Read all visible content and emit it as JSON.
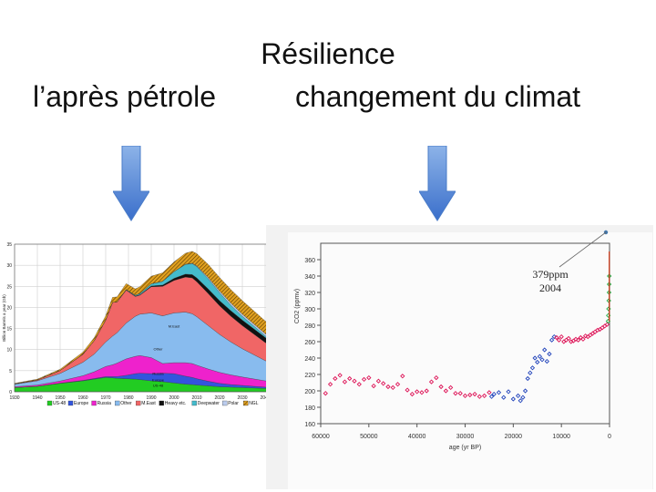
{
  "slide": {
    "title": "Résilience",
    "left_heading": "l’après pétrole",
    "right_heading": "changement du climat",
    "colors": {
      "arrow_top": "#8db3e8",
      "arrow_bottom": "#3a6fcb"
    }
  },
  "chart_data": [
    {
      "type": "area",
      "ylabel": "Billion Barrels a year (Gb)",
      "xlim": [
        1930,
        2050
      ],
      "ylim": [
        0,
        35
      ],
      "x_ticks": [
        "1930",
        "1940",
        "1950",
        "1960",
        "1970",
        "1980",
        "1990",
        "2000",
        "2010",
        "2020",
        "2030",
        "2040",
        "2050"
      ],
      "y_ticks": [
        "0",
        "5",
        "10",
        "15",
        "20",
        "25",
        "30",
        "35"
      ],
      "grid": true,
      "legend_position": "bottom",
      "x": [
        1930,
        1940,
        1950,
        1960,
        1965,
        1970,
        1973,
        1975,
        1979,
        1983,
        1985,
        1990,
        1995,
        2000,
        2005,
        2008,
        2010,
        2015,
        2020,
        2025,
        2030,
        2040,
        2050
      ],
      "series": [
        {
          "name": "US-48",
          "color": "#22cc22",
          "values": [
            1.0,
            1.3,
            2.0,
            2.6,
            3.0,
            3.4,
            3.3,
            3.2,
            3.1,
            3.0,
            2.9,
            2.6,
            2.4,
            2.1,
            1.8,
            1.7,
            1.6,
            1.4,
            1.2,
            1.1,
            1.0,
            0.8,
            0.6
          ]
        },
        {
          "name": "Europe",
          "color": "#3355dd",
          "values": [
            0.0,
            0.0,
            0.05,
            0.1,
            0.15,
            0.2,
            0.3,
            0.4,
            0.8,
            1.3,
            1.5,
            1.7,
            2.0,
            2.2,
            1.9,
            1.7,
            1.5,
            1.1,
            0.8,
            0.6,
            0.5,
            0.3,
            0.2
          ]
        },
        {
          "name": "Russia",
          "color": "#ee22cc",
          "values": [
            0.2,
            0.3,
            0.5,
            1.1,
            1.6,
            2.4,
            2.8,
            3.2,
            3.9,
            4.1,
            4.2,
            3.8,
            2.3,
            2.6,
            3.2,
            3.3,
            3.2,
            2.9,
            2.6,
            2.3,
            2.0,
            1.5,
            1.1
          ]
        },
        {
          "name": "Other",
          "color": "#88bbee",
          "values": [
            0.6,
            1.0,
            1.8,
            3.2,
            4.2,
            5.8,
            6.8,
            7.2,
            8.5,
            9.5,
            9.8,
            10.6,
            11.3,
            11.8,
            12.0,
            11.8,
            11.5,
            10.3,
            9.0,
            7.8,
            6.7,
            4.8,
            3.3
          ]
        },
        {
          "name": "M.East",
          "color": "#f06666",
          "values": [
            0.1,
            0.2,
            0.7,
            1.9,
            3.2,
            5.2,
            8.0,
            7.3,
            7.8,
            4.7,
            4.5,
            6.2,
            7.0,
            7.7,
            8.3,
            8.5,
            8.3,
            7.6,
            6.8,
            6.1,
            5.5,
            4.3,
            3.3
          ]
        },
        {
          "name": "Heavy etc.",
          "color": "#111111",
          "values": [
            0,
            0,
            0,
            0,
            0,
            0,
            0,
            0,
            0.05,
            0.1,
            0.1,
            0.2,
            0.3,
            0.5,
            0.7,
            0.8,
            0.9,
            1.1,
            1.2,
            1.3,
            1.3,
            1.2,
            1.1
          ]
        },
        {
          "name": "Deepwater",
          "color": "#44bbcc",
          "values": [
            0,
            0,
            0,
            0,
            0,
            0,
            0,
            0,
            0.1,
            0.2,
            0.3,
            0.5,
            0.9,
            1.6,
            2.3,
            2.6,
            2.7,
            2.4,
            1.9,
            1.3,
            0.9,
            0.4,
            0.2
          ]
        },
        {
          "name": "Polar",
          "color": "#bbccee",
          "values": [
            0,
            0,
            0,
            0,
            0,
            0,
            0,
            0,
            0,
            0,
            0,
            0,
            0,
            0,
            0.05,
            0.1,
            0.15,
            0.3,
            0.4,
            0.5,
            0.5,
            0.5,
            0.4
          ]
        },
        {
          "name": "NGL",
          "color": "#b8860b",
          "values": [
            0.1,
            0.2,
            0.3,
            0.5,
            0.7,
            1.0,
            1.2,
            1.2,
            1.4,
            1.5,
            1.6,
            1.8,
            2.0,
            2.3,
            2.6,
            2.8,
            2.9,
            3.1,
            3.2,
            3.2,
            3.2,
            3.0,
            2.8
          ]
        }
      ],
      "annotations": [
        "M.East",
        "Other",
        "Russia",
        "Europe",
        "US-48"
      ]
    },
    {
      "type": "scatter",
      "xlabel": "age (yr BP)",
      "ylabel": "CO2 (ppmv)",
      "xlim": [
        60000,
        0
      ],
      "ylim": [
        160,
        380
      ],
      "x_ticks": [
        "60000",
        "50000",
        "40000",
        "30000",
        "20000",
        "10000",
        "0"
      ],
      "y_ticks": [
        "160",
        "180",
        "200",
        "220",
        "240",
        "260",
        "280",
        "300",
        "320",
        "340",
        "360"
      ],
      "annotation": {
        "value_label": "379ppm",
        "year_label": "2004"
      },
      "series": [
        {
          "color": "#dd1155",
          "x": [
            59000,
            58000,
            57000,
            56000,
            55000,
            54000,
            53000,
            52000,
            51000,
            50000,
            49000,
            48000,
            47000,
            46000,
            45000,
            44000,
            43000,
            42000,
            41000,
            40000,
            39000,
            38000,
            37000,
            36000,
            35000,
            34000,
            33000,
            32000,
            31000,
            30000,
            29000,
            28000,
            27000,
            26000,
            25000
          ],
          "y": [
            197,
            208,
            215,
            219,
            211,
            215,
            212,
            208,
            214,
            216,
            206,
            212,
            209,
            205,
            204,
            208,
            218,
            201,
            196,
            199,
            198,
            200,
            211,
            216,
            205,
            200,
            204,
            197,
            197,
            194,
            195,
            196,
            193,
            194,
            198
          ]
        },
        {
          "color": "#2244bb",
          "x": [
            24500,
            24000,
            23000,
            22000,
            21000,
            20000,
            19000,
            18500,
            18000,
            17500,
            17000,
            16500,
            16000,
            15500,
            15000,
            14500,
            14000,
            13500,
            13000,
            12500,
            12000,
            11500
          ],
          "y": [
            193,
            196,
            198,
            192,
            199,
            190,
            194,
            188,
            192,
            200,
            215,
            222,
            228,
            240,
            235,
            242,
            238,
            250,
            236,
            245,
            262,
            266
          ]
        },
        {
          "color": "#dd1155",
          "x": [
            11000,
            10500,
            10000,
            9500,
            9000,
            8500,
            8000,
            7500,
            7000,
            6500,
            6000,
            5500,
            5000,
            4500,
            4000,
            3500,
            3000,
            2500,
            2000,
            1500,
            1000,
            500
          ],
          "y": [
            265,
            262,
            266,
            260,
            262,
            264,
            260,
            261,
            263,
            262,
            265,
            263,
            267,
            266,
            268,
            270,
            272,
            274,
            275,
            277,
            279,
            281
          ]
        },
        {
          "color": "#22aa44",
          "x": [
            300,
            250,
            200,
            150,
            100,
            80,
            60
          ],
          "y": [
            285,
            292,
            300,
            310,
            320,
            330,
            340
          ]
        }
      ]
    }
  ]
}
